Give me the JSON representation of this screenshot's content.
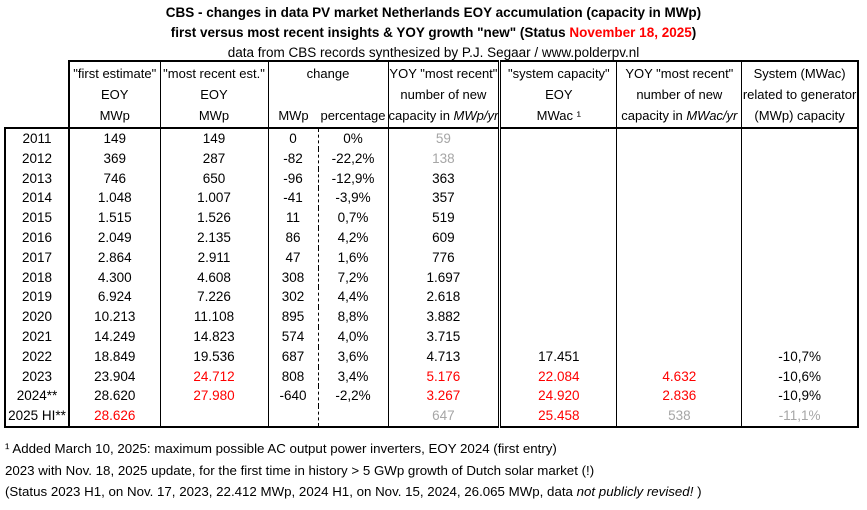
{
  "title": {
    "line1": "CBS - changes in data PV market Netherlands EOY accumulation (capacity in MWp)",
    "line2_prefix": "first versus most recent insights & YOY growth \"new\" (Status ",
    "line2_date": "November 18, 2025",
    "line2_suffix": ")",
    "line3": "data from CBS records synthesized by P.J. Segaar / www.polderpv.nl"
  },
  "colors": {
    "highlight_red": "#ff0000",
    "muted_gray": "#a6a6a6",
    "border_black": "#000000"
  },
  "table": {
    "header": {
      "first_estimate": {
        "l1": "\"first estimate\"",
        "l2": "EOY",
        "l3": "MWp"
      },
      "most_recent": {
        "l1": "\"most recent est.\"",
        "l2": "EOY",
        "l3": "MWp"
      },
      "change": {
        "l1": "change",
        "sub1": "MWp",
        "sub2": "percentage"
      },
      "yoy_mwp": {
        "l1": "YOY \"most recent\"",
        "l2": "number  of new",
        "l3a": "capacity in ",
        "l3b": "MWp/yr"
      },
      "system_capacity": {
        "l1": "\"system capacity\"",
        "l2": "EOY",
        "l3": "MWac ¹"
      },
      "yoy_mwac": {
        "l1": "YOY \"most recent\"",
        "l2": "number of new",
        "l3a": "capacity in ",
        "l3b": "MWac/yr"
      },
      "system_ratio": {
        "l1": "System (MWac)",
        "l2": "related to generator",
        "l3": "(MWp) capacity"
      }
    }
  },
  "chart_data": {
    "type": "table",
    "title": "CBS - changes in data PV market Netherlands EOY accumulation (capacity in MWp)",
    "columns": [
      "year",
      "first estimate EOY MWp",
      "most recent est. EOY MWp",
      "change MWp",
      "change percentage",
      "YOY most recent number of new capacity in MWp/yr",
      "system capacity EOY MWac",
      "YOY most recent number of new capacity in MWac/yr",
      "System (MWac) related to generator (MWp) capacity"
    ],
    "rows": [
      {
        "year": "2011",
        "cells": [
          {
            "v": "149"
          },
          {
            "v": "149"
          },
          {
            "v": "0"
          },
          {
            "v": "0%"
          },
          {
            "v": "59",
            "c": "gray"
          },
          {
            "v": ""
          },
          {
            "v": ""
          },
          {
            "v": ""
          }
        ]
      },
      {
        "year": "2012",
        "cells": [
          {
            "v": "369"
          },
          {
            "v": "287"
          },
          {
            "v": "-82"
          },
          {
            "v": "-22,2%"
          },
          {
            "v": "138",
            "c": "gray"
          },
          {
            "v": ""
          },
          {
            "v": ""
          },
          {
            "v": ""
          }
        ]
      },
      {
        "year": "2013",
        "cells": [
          {
            "v": "746"
          },
          {
            "v": "650"
          },
          {
            "v": "-96"
          },
          {
            "v": "-12,9%"
          },
          {
            "v": "363"
          },
          {
            "v": ""
          },
          {
            "v": ""
          },
          {
            "v": ""
          }
        ]
      },
      {
        "year": "2014",
        "cells": [
          {
            "v": "1.048"
          },
          {
            "v": "1.007"
          },
          {
            "v": "-41"
          },
          {
            "v": "-3,9%"
          },
          {
            "v": "357"
          },
          {
            "v": ""
          },
          {
            "v": ""
          },
          {
            "v": ""
          }
        ]
      },
      {
        "year": "2015",
        "cells": [
          {
            "v": "1.515"
          },
          {
            "v": "1.526"
          },
          {
            "v": "11"
          },
          {
            "v": "0,7%"
          },
          {
            "v": "519"
          },
          {
            "v": ""
          },
          {
            "v": ""
          },
          {
            "v": ""
          }
        ]
      },
      {
        "year": "2016",
        "cells": [
          {
            "v": "2.049"
          },
          {
            "v": "2.135"
          },
          {
            "v": "86"
          },
          {
            "v": "4,2%"
          },
          {
            "v": "609"
          },
          {
            "v": ""
          },
          {
            "v": ""
          },
          {
            "v": ""
          }
        ]
      },
      {
        "year": "2017",
        "cells": [
          {
            "v": "2.864"
          },
          {
            "v": "2.911"
          },
          {
            "v": "47"
          },
          {
            "v": "1,6%"
          },
          {
            "v": "776"
          },
          {
            "v": ""
          },
          {
            "v": ""
          },
          {
            "v": ""
          }
        ]
      },
      {
        "year": "2018",
        "cells": [
          {
            "v": "4.300"
          },
          {
            "v": "4.608"
          },
          {
            "v": "308"
          },
          {
            "v": "7,2%"
          },
          {
            "v": "1.697"
          },
          {
            "v": ""
          },
          {
            "v": ""
          },
          {
            "v": ""
          }
        ]
      },
      {
        "year": "2019",
        "cells": [
          {
            "v": "6.924"
          },
          {
            "v": "7.226"
          },
          {
            "v": "302"
          },
          {
            "v": "4,4%"
          },
          {
            "v": "2.618"
          },
          {
            "v": ""
          },
          {
            "v": ""
          },
          {
            "v": ""
          }
        ]
      },
      {
        "year": "2020",
        "cells": [
          {
            "v": "10.213"
          },
          {
            "v": "11.108"
          },
          {
            "v": "895"
          },
          {
            "v": "8,8%"
          },
          {
            "v": "3.882"
          },
          {
            "v": ""
          },
          {
            "v": ""
          },
          {
            "v": ""
          }
        ]
      },
      {
        "year": "2021",
        "cells": [
          {
            "v": "14.249"
          },
          {
            "v": "14.823"
          },
          {
            "v": "574"
          },
          {
            "v": "4,0%"
          },
          {
            "v": "3.715"
          },
          {
            "v": ""
          },
          {
            "v": ""
          },
          {
            "v": ""
          }
        ]
      },
      {
        "year": "2022",
        "cells": [
          {
            "v": "18.849"
          },
          {
            "v": "19.536"
          },
          {
            "v": "687"
          },
          {
            "v": "3,6%"
          },
          {
            "v": "4.713"
          },
          {
            "v": "17.451"
          },
          {
            "v": ""
          },
          {
            "v": "-10,7%"
          }
        ]
      },
      {
        "year": "2023",
        "cells": [
          {
            "v": "23.904"
          },
          {
            "v": "24.712",
            "c": "red"
          },
          {
            "v": "808"
          },
          {
            "v": "3,4%"
          },
          {
            "v": "5.176",
            "c": "red"
          },
          {
            "v": "22.084",
            "c": "red"
          },
          {
            "v": "4.632",
            "c": "red"
          },
          {
            "v": "-10,6%"
          }
        ]
      },
      {
        "year": "2024**",
        "cells": [
          {
            "v": "28.620"
          },
          {
            "v": "27.980",
            "c": "red"
          },
          {
            "v": "-640"
          },
          {
            "v": "-2,2%"
          },
          {
            "v": "3.267",
            "c": "red"
          },
          {
            "v": "24.920",
            "c": "red"
          },
          {
            "v": "2.836",
            "c": "red"
          },
          {
            "v": "-10,9%"
          }
        ]
      },
      {
        "year": "2025 HI**",
        "cells": [
          {
            "v": "28.626",
            "c": "red"
          },
          {
            "v": ""
          },
          {
            "v": ""
          },
          {
            "v": ""
          },
          {
            "v": "647",
            "c": "gray"
          },
          {
            "v": "25.458",
            "c": "red"
          },
          {
            "v": "538",
            "c": "gray"
          },
          {
            "v": "-11,1%",
            "c": "gray"
          }
        ]
      }
    ]
  },
  "footnotes": {
    "line1": "¹ Added March 10, 2025: maximum possible AC output power inverters, EOY 2024 (first entry)",
    "line2": "2023 with Nov. 18, 2025 update, for the first time in history > 5 GWp growth of Dutch solar market (!)",
    "line3_prefix": "(Status 2023 H1, on Nov. 17, 2023, 22.412 MWp,  2024 H1, on Nov. 15, 2024, 26.065 MWp, data ",
    "line3_italic": "not publicly revised!",
    "line3_suffix": " )"
  }
}
